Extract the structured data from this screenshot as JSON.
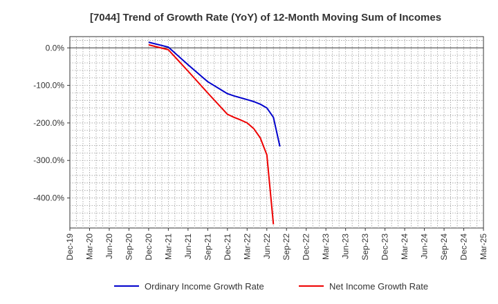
{
  "chart_data": {
    "type": "line",
    "title": "[7044]  Trend of Growth Rate (YoY) of 12-Month Moving Sum of Incomes",
    "xlabel": "",
    "ylabel": "",
    "x_categories": [
      "Dec-19",
      "Mar-20",
      "Jun-20",
      "Sep-20",
      "Dec-20",
      "Mar-21",
      "Jun-21",
      "Sep-21",
      "Dec-21",
      "Mar-22",
      "Jun-22",
      "Sep-22",
      "Dec-22",
      "Mar-23",
      "Jun-23",
      "Sep-23",
      "Dec-23",
      "Mar-24",
      "Jun-24",
      "Sep-24",
      "Dec-24",
      "Mar-25"
    ],
    "y_ticks": [
      0,
      -100,
      -200,
      -300,
      -400
    ],
    "y_tick_labels": [
      "0.0%",
      "-100.0%",
      "-200.0%",
      "-300.0%",
      "-400.0%"
    ],
    "ylim": [
      -480,
      30
    ],
    "grid": true,
    "legend_position": "bottom",
    "series": [
      {
        "name": "Ordinary Income Growth Rate",
        "color": "#0000cc",
        "points": [
          [
            "Dec-20",
            15
          ],
          [
            "Mar-21",
            2
          ],
          [
            "Jun-21",
            -45
          ],
          [
            "Sep-21",
            -90
          ],
          [
            "Dec-21",
            -122
          ],
          [
            "Jan-22",
            -128
          ],
          [
            "Feb-22",
            -133
          ],
          [
            "Mar-22",
            -138
          ],
          [
            "Apr-22",
            -143
          ],
          [
            "May-22",
            -150
          ],
          [
            "Jun-22",
            -160
          ],
          [
            "Jul-22",
            -185
          ],
          [
            "Aug-22",
            -263
          ]
        ]
      },
      {
        "name": "Net Income Growth Rate",
        "color": "#ee0000",
        "points": [
          [
            "Dec-20",
            8
          ],
          [
            "Mar-21",
            -5
          ],
          [
            "Jun-21",
            -62
          ],
          [
            "Sep-21",
            -120
          ],
          [
            "Dec-21",
            -177
          ],
          [
            "Jan-22",
            -185
          ],
          [
            "Feb-22",
            -192
          ],
          [
            "Mar-22",
            -200
          ],
          [
            "Apr-22",
            -215
          ],
          [
            "May-22",
            -240
          ],
          [
            "Jun-22",
            -285
          ],
          [
            "Jul-22",
            -470
          ]
        ]
      }
    ]
  }
}
